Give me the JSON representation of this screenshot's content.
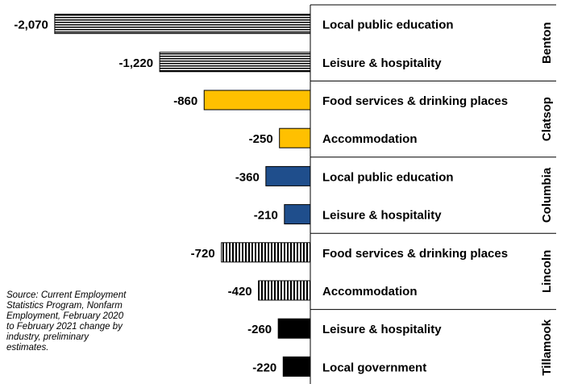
{
  "source_note": "Source: Current Employment Statistics Program, Nonfarm Employment, February 2020 to February 2021 change by industry, preliminary estimates.",
  "chart_data": {
    "type": "bar",
    "orientation": "horizontal",
    "title": "",
    "xlabel": "",
    "ylabel": "",
    "grid": false,
    "legend": "none",
    "groups": [
      {
        "county": "Benton",
        "fill": "horizontal-stripes",
        "color": "#000000",
        "bars": [
          {
            "industry": "Local public education",
            "value": -2070,
            "label": "-2,070"
          },
          {
            "industry": "Leisure & hospitality",
            "value": -1220,
            "label": "-1,220"
          }
        ]
      },
      {
        "county": "Clatsop",
        "fill": "solid",
        "color": "#FFC000",
        "bars": [
          {
            "industry": "Food services & drinking places",
            "value": -860,
            "label": "-860"
          },
          {
            "industry": "Accommodation",
            "value": -250,
            "label": "-250"
          }
        ]
      },
      {
        "county": "Columbia",
        "fill": "solid",
        "color": "#1F4E8C",
        "bars": [
          {
            "industry": "Local public education",
            "value": -360,
            "label": "-360"
          },
          {
            "industry": "Leisure & hospitality",
            "value": -210,
            "label": "-210"
          }
        ]
      },
      {
        "county": "Lincoln",
        "fill": "vertical-stripes",
        "color": "#000000",
        "bars": [
          {
            "industry": "Food services & drinking places",
            "value": -720,
            "label": "-720"
          },
          {
            "industry": "Accommodation",
            "value": -420,
            "label": "-420"
          }
        ]
      },
      {
        "county": "Tillamook",
        "fill": "solid",
        "color": "#000000",
        "bars": [
          {
            "industry": "Leisure & hospitality",
            "value": -260,
            "label": "-260"
          },
          {
            "industry": "Local government",
            "value": -220,
            "label": "-220"
          }
        ]
      }
    ]
  }
}
